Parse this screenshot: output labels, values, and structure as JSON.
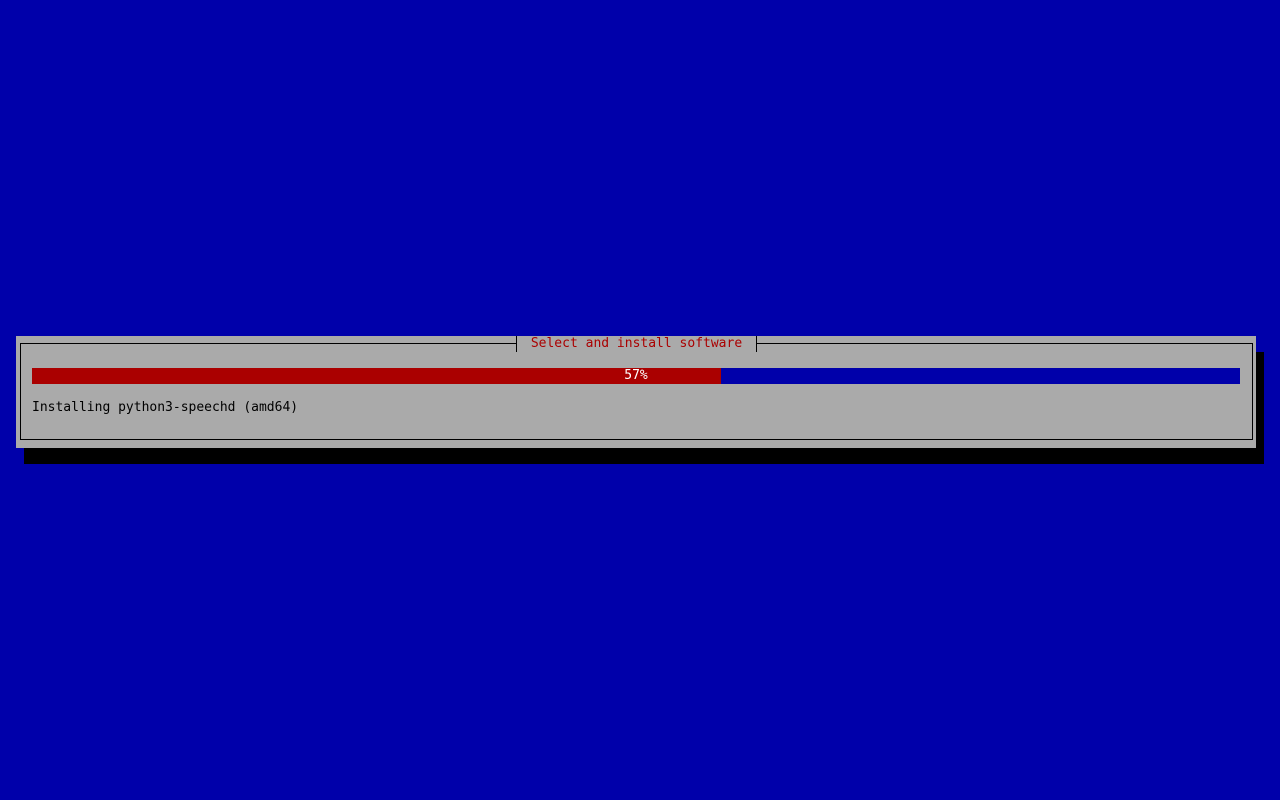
{
  "dialog": {
    "title": "Select and install software",
    "progress": {
      "percent": 57,
      "label": "57%"
    },
    "status_text": "Installing python3-speechd (amd64)"
  },
  "colors": {
    "background": "#0000aa",
    "dialog": "#aaaaaa",
    "title": "#aa0000",
    "progress_fill": "#aa0000",
    "progress_empty": "#0000aa"
  }
}
